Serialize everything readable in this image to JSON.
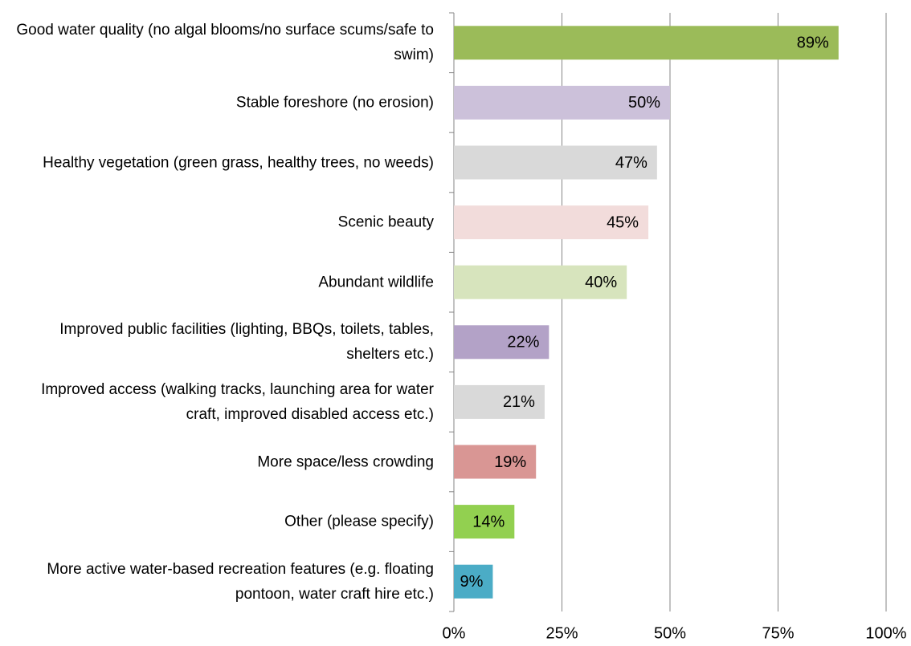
{
  "chart_data": {
    "type": "bar",
    "orientation": "horizontal",
    "categories": [
      "Good water quality (no algal blooms/no surface scums/safe to swim)",
      "Stable foreshore (no erosion)",
      "Healthy vegetation (green grass, healthy trees, no weeds)",
      "Scenic beauty",
      "Abundant wildlife",
      "Improved public facilities (lighting, BBQs, toilets, tables, shelters etc.)",
      "Improved access (walking tracks, launching area for water craft,  improved disabled access etc.)",
      "More space/less crowding",
      "Other (please specify)",
      "More active water-based recreation features (e.g. floating pontoon, water craft hire etc.)"
    ],
    "values": [
      89,
      50,
      47,
      45,
      40,
      22,
      21,
      19,
      14,
      9
    ],
    "value_labels": [
      "89%",
      "50%",
      "47%",
      "45%",
      "40%",
      "22%",
      "21%",
      "19%",
      "14%",
      "9%"
    ],
    "colors": [
      "#9bbb59",
      "#ccc1da",
      "#d9d9d9",
      "#f2dcdb",
      "#d7e4bd",
      "#b3a2c7",
      "#d9d9d9",
      "#d99694",
      "#92d050",
      "#4bacc6"
    ],
    "xlim": [
      0,
      100
    ],
    "xticks": [
      {
        "value": 0,
        "label": "0%"
      },
      {
        "value": 25,
        "label": "25%"
      },
      {
        "value": 50,
        "label": "50%"
      },
      {
        "value": 75,
        "label": "75%"
      },
      {
        "value": 100,
        "label": "100%"
      }
    ],
    "grid": true
  }
}
